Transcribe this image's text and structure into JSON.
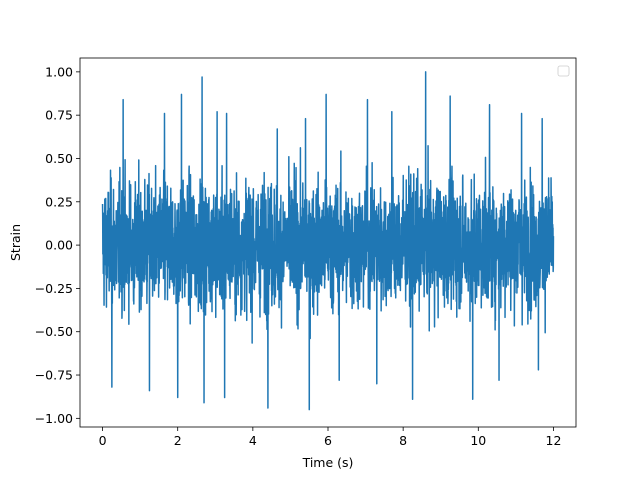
{
  "chart_data": {
    "type": "line",
    "title": "",
    "xlabel": "Time (s)",
    "ylabel": "Strain",
    "xlim": [
      -0.6,
      12.6
    ],
    "ylim": [
      -1.05,
      1.08
    ],
    "xticks": [
      0,
      2,
      4,
      6,
      8,
      10,
      12
    ],
    "xtick_labels": [
      "0",
      "2",
      "4",
      "6",
      "8",
      "10",
      "12"
    ],
    "yticks": [
      -1.0,
      -0.75,
      -0.5,
      -0.25,
      0.0,
      0.25,
      0.5,
      0.75,
      1.0
    ],
    "ytick_labels": [
      "−1.00",
      "−0.75",
      "−0.50",
      "−0.25",
      "0.00",
      "0.25",
      "0.50",
      "0.75",
      "1.00"
    ],
    "grid": false,
    "legend": {
      "placement": "top-right",
      "entries": []
    },
    "series": [
      {
        "color": "#1f77b4",
        "x_range": [
          0,
          12
        ],
        "typical_envelope": [
          -0.55,
          0.55
        ],
        "max": 1.0,
        "min": -0.95,
        "notable_peaks": [
          {
            "x": 0.55,
            "y": 0.84
          },
          {
            "x": 1.65,
            "y": 0.76
          },
          {
            "x": 2.1,
            "y": 0.87
          },
          {
            "x": 2.65,
            "y": 0.97
          },
          {
            "x": 3.05,
            "y": 0.77
          },
          {
            "x": 3.3,
            "y": 0.76
          },
          {
            "x": 4.65,
            "y": 0.67
          },
          {
            "x": 5.4,
            "y": 0.73
          },
          {
            "x": 5.95,
            "y": 0.87
          },
          {
            "x": 7.05,
            "y": 0.84
          },
          {
            "x": 7.7,
            "y": 0.77
          },
          {
            "x": 8.6,
            "y": 1.0
          },
          {
            "x": 9.25,
            "y": 0.86
          },
          {
            "x": 10.3,
            "y": 0.81
          },
          {
            "x": 11.15,
            "y": 0.76
          },
          {
            "x": 11.7,
            "y": 0.73
          },
          {
            "x": 0.25,
            "y": -0.82
          },
          {
            "x": 1.25,
            "y": -0.84
          },
          {
            "x": 2.0,
            "y": -0.88
          },
          {
            "x": 2.7,
            "y": -0.91
          },
          {
            "x": 3.25,
            "y": -0.88
          },
          {
            "x": 4.4,
            "y": -0.94
          },
          {
            "x": 5.5,
            "y": -0.95
          },
          {
            "x": 6.3,
            "y": -0.78
          },
          {
            "x": 7.3,
            "y": -0.8
          },
          {
            "x": 8.25,
            "y": -0.89
          },
          {
            "x": 9.85,
            "y": -0.89
          },
          {
            "x": 10.55,
            "y": -0.78
          },
          {
            "x": 11.6,
            "y": -0.72
          }
        ]
      }
    ]
  }
}
